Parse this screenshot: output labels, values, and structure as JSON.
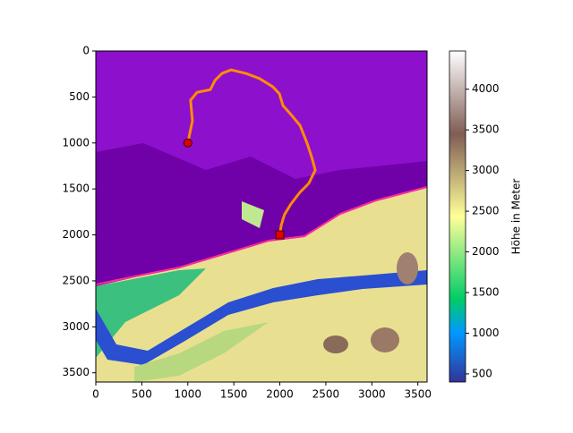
{
  "chart_data": {
    "type": "map",
    "xlim": [
      0,
      3600
    ],
    "ylim": [
      3600,
      0
    ],
    "xticks": [
      0,
      500,
      1000,
      1500,
      2000,
      2500,
      3000,
      3500
    ],
    "yticks": [
      0,
      500,
      1000,
      1500,
      2000,
      2500,
      3000,
      3500
    ],
    "path": {
      "color": "#ff8c00",
      "x": [
        1000,
        1050,
        1030,
        1100,
        1245,
        1295,
        1370,
        1470,
        1635,
        1780,
        1925,
        1995,
        2035,
        2120,
        2220,
        2295,
        2345,
        2385,
        2315,
        2220,
        2120,
        2050,
        2015,
        2000
      ],
      "y": [
        1000,
        760,
        535,
        450,
        420,
        320,
        245,
        205,
        245,
        300,
        390,
        465,
        595,
        690,
        810,
        1000,
        1150,
        1295,
        1440,
        1535,
        1665,
        1780,
        1895,
        2000
      ]
    },
    "start": {
      "x": 1000,
      "y": 1000,
      "color": "#e00000"
    },
    "end": {
      "x": 2000,
      "y": 2000,
      "color": "#e00000"
    },
    "colorbar": {
      "label": "Höhe in Meter",
      "lim": [
        400,
        4470
      ],
      "ticks": [
        500,
        1000,
        1500,
        2000,
        2500,
        3000,
        3500,
        4000
      ]
    }
  }
}
